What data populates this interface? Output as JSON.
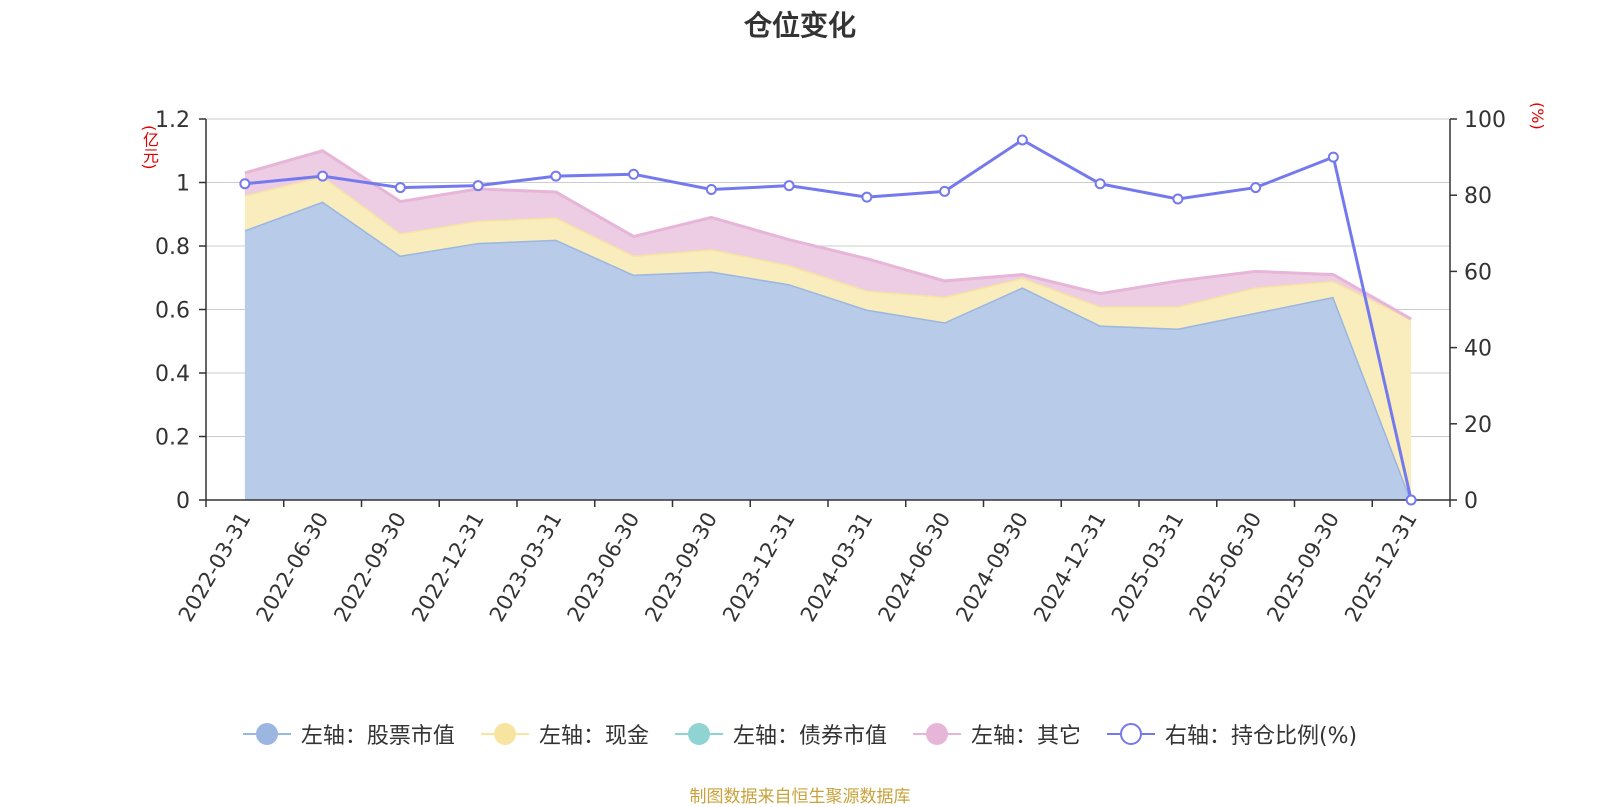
{
  "chart_data": {
    "type": "area",
    "title": "仓位变化",
    "left_axis_unit": "(亿元)",
    "right_axis_unit": "(%)",
    "categories": [
      "2022-03-31",
      "2022-06-30",
      "2022-09-30",
      "2022-12-31",
      "2023-03-31",
      "2023-06-30",
      "2023-09-30",
      "2023-12-31",
      "2024-03-31",
      "2024-06-30",
      "2024-09-30",
      "2024-12-31",
      "2025-03-31",
      "2025-06-30",
      "2025-09-30",
      "2025-12-31"
    ],
    "left_ticks": [
      "0",
      "0.2",
      "0.4",
      "0.6",
      "0.8",
      "1",
      "1.2"
    ],
    "right_ticks": [
      "0",
      "20",
      "40",
      "60",
      "80",
      "100"
    ],
    "ylim_left": [
      0,
      1.2
    ],
    "ylim_right": [
      0,
      100
    ],
    "series": [
      {
        "name": "左轴：股票市值",
        "axis": "left",
        "stack": true,
        "color": "#9bb6e0",
        "fill": "#b8cbe9",
        "values": [
          0.85,
          0.94,
          0.77,
          0.81,
          0.82,
          0.71,
          0.72,
          0.68,
          0.6,
          0.56,
          0.67,
          0.55,
          0.54,
          0.59,
          0.64,
          0.0
        ]
      },
      {
        "name": "左轴：现金",
        "axis": "left",
        "stack": true,
        "color": "#f7e4a0",
        "fill": "#f9ecbd",
        "values": [
          0.11,
          0.08,
          0.07,
          0.07,
          0.07,
          0.06,
          0.07,
          0.06,
          0.06,
          0.08,
          0.03,
          0.06,
          0.07,
          0.08,
          0.05,
          0.57
        ]
      },
      {
        "name": "左轴：债券市值",
        "axis": "left",
        "stack": true,
        "color": "#8fd3d3",
        "fill": "#a9dede",
        "values": [
          0,
          0,
          0,
          0,
          0,
          0,
          0,
          0,
          0,
          0,
          0,
          0,
          0,
          0,
          0,
          0
        ]
      },
      {
        "name": "左轴：其它",
        "axis": "left",
        "stack": true,
        "color": "#e6b5d8",
        "fill": "#edcde4",
        "values": [
          0.07,
          0.08,
          0.1,
          0.1,
          0.08,
          0.06,
          0.1,
          0.08,
          0.1,
          0.05,
          0.01,
          0.04,
          0.08,
          0.05,
          0.02,
          0.0
        ]
      },
      {
        "name": "右轴：持仓比例(%)",
        "axis": "right",
        "stack": false,
        "color": "#7479ee",
        "values": [
          83,
          85,
          82,
          82.5,
          85,
          85.5,
          81.5,
          82.5,
          79.5,
          81,
          94.5,
          83,
          79,
          82,
          90,
          0
        ]
      }
    ]
  },
  "legend": [
    {
      "label": "左轴：股票市值",
      "color": "#9bb6e0",
      "hollow": false
    },
    {
      "label": "左轴：现金",
      "color": "#f7e4a0",
      "hollow": false
    },
    {
      "label": "左轴：债券市值",
      "color": "#8fd3d3",
      "hollow": false
    },
    {
      "label": "左轴：其它",
      "color": "#e6b5d8",
      "hollow": false
    },
    {
      "label": "右轴：持仓比例(%)",
      "color": "#7479ee",
      "hollow": true
    }
  ],
  "source": "制图数据来自恒生聚源数据库"
}
